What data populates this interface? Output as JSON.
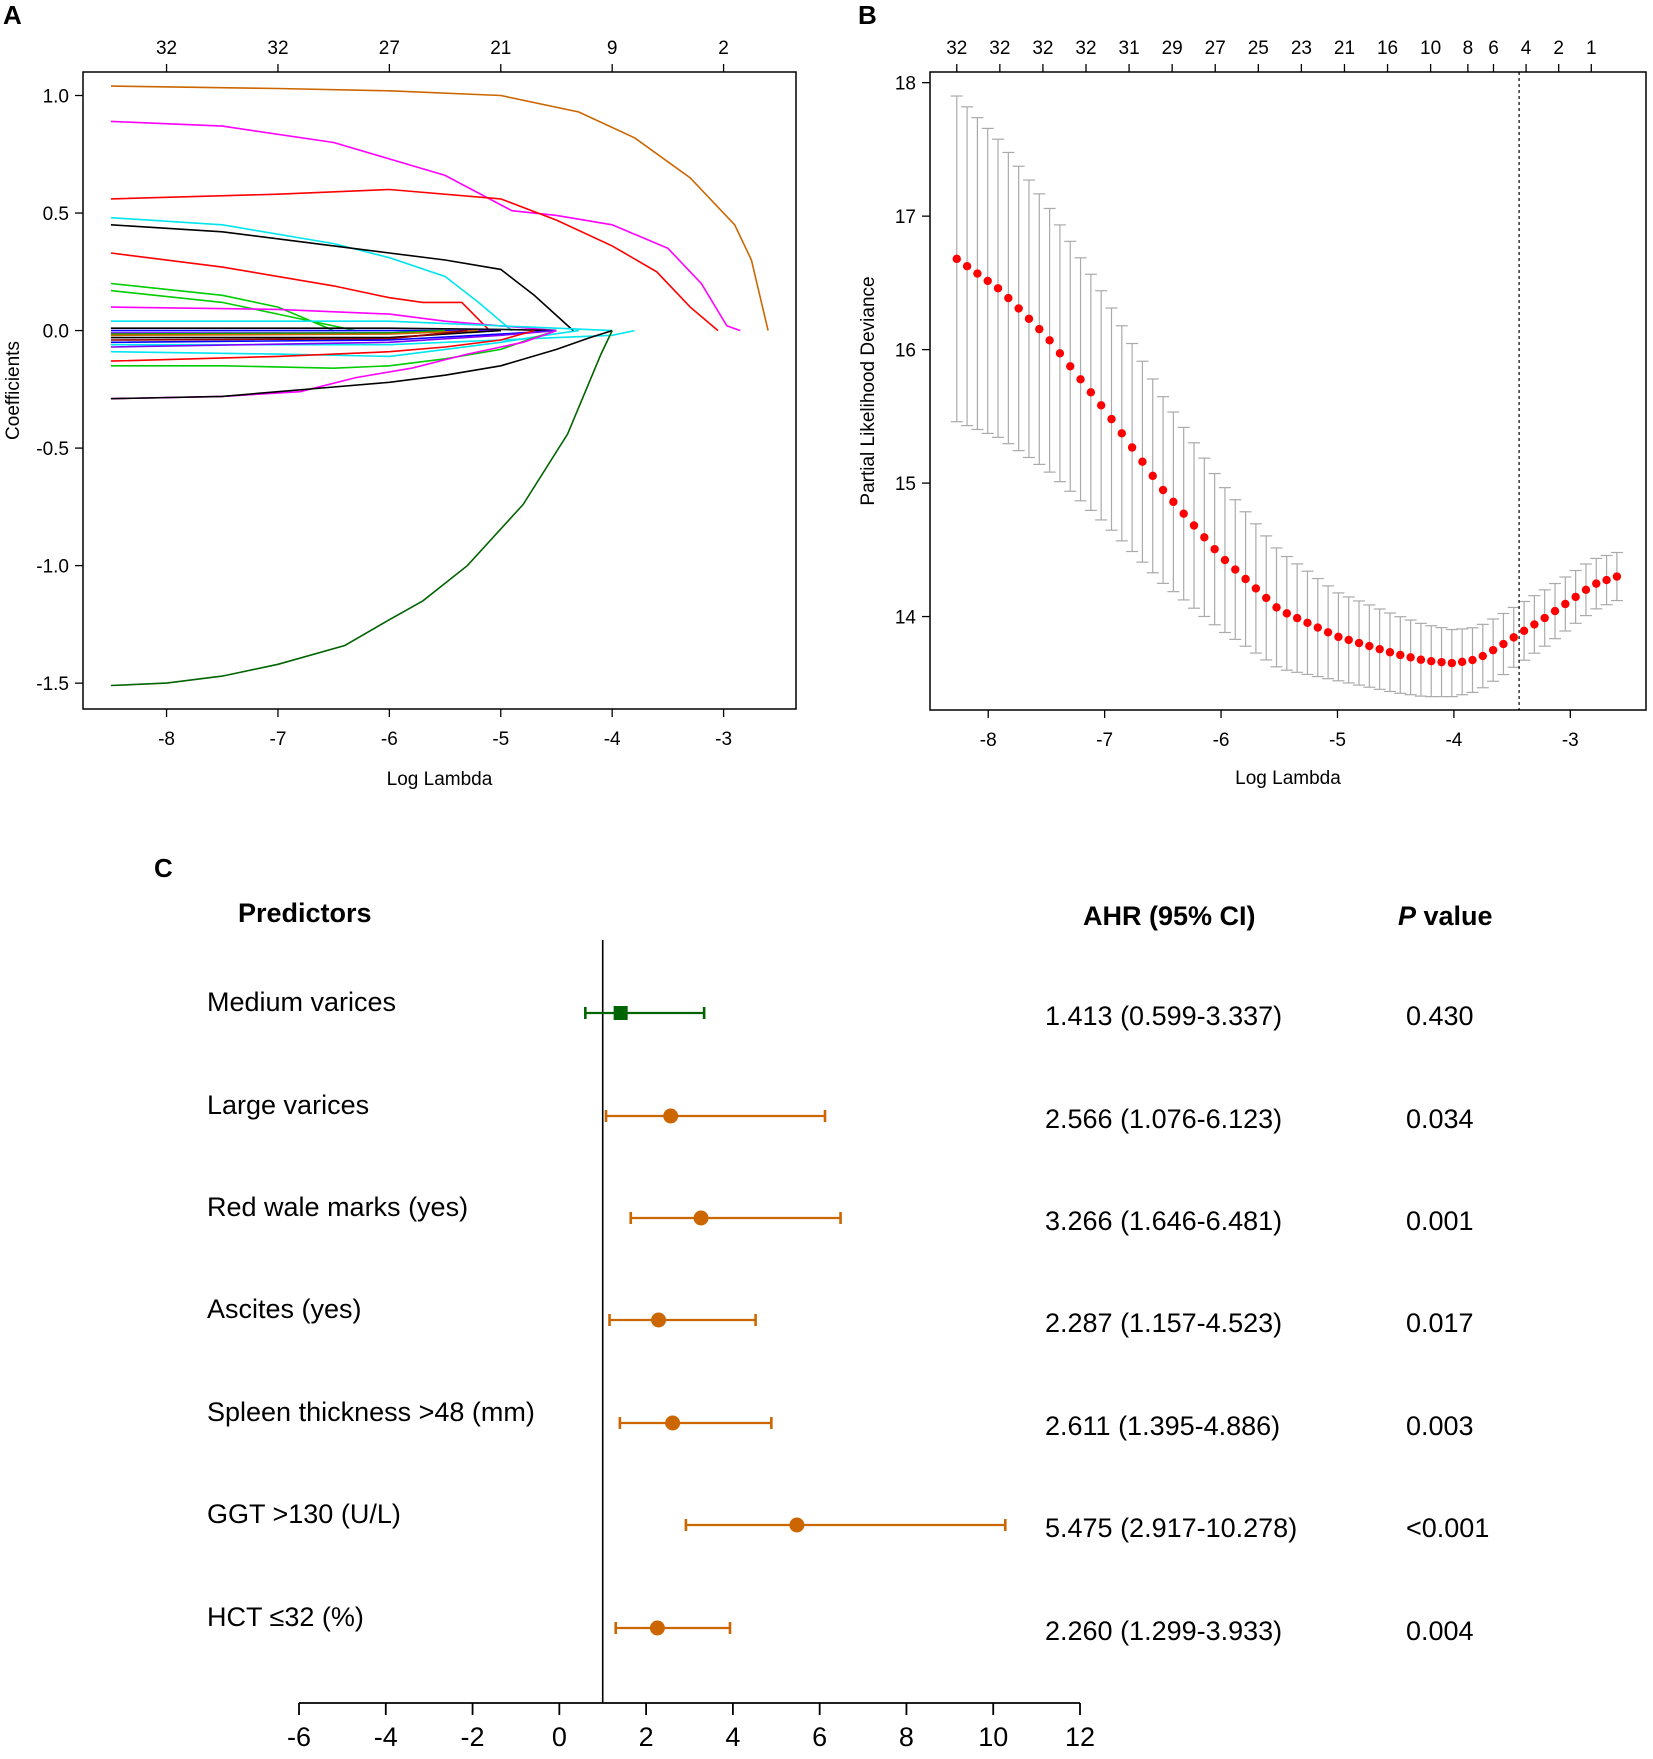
{
  "panels": {
    "a": "A",
    "b": "B",
    "c": "C"
  },
  "chart_data": [
    {
      "type": "line",
      "panel": "A",
      "title": "",
      "xlabel": "Log Lambda",
      "ylabel": "Coefficients",
      "xlim": [
        -8.75,
        -2.35
      ],
      "ylim": [
        -1.61,
        1.1
      ],
      "xticks": [
        "-8",
        "-7",
        "-6",
        "-5",
        "-4",
        "-3"
      ],
      "yticks": [
        "1.0",
        "0.5",
        "0.0",
        "-0.5",
        "-1.0",
        "-1.5"
      ],
      "top_axis_labels": [
        "32",
        "32",
        "27",
        "21",
        "9",
        "2"
      ],
      "top_axis_positions": [
        -8,
        -7,
        -6,
        -5,
        -4,
        -3
      ],
      "series": [
        {
          "name": "brown",
          "color": "#cc6600",
          "points": [
            [
              -8.5,
              1.04
            ],
            [
              -7,
              1.03
            ],
            [
              -6,
              1.02
            ],
            [
              -5,
              1.0
            ],
            [
              -4.3,
              0.93
            ],
            [
              -3.8,
              0.82
            ],
            [
              -3.3,
              0.65
            ],
            [
              -2.9,
              0.45
            ],
            [
              -2.75,
              0.3
            ],
            [
              -2.6,
              0
            ]
          ]
        },
        {
          "name": "magenta",
          "color": "#ff00ff",
          "points": [
            [
              -8.5,
              0.89
            ],
            [
              -7.5,
              0.87
            ],
            [
              -6.5,
              0.8
            ],
            [
              -5.5,
              0.66
            ],
            [
              -4.9,
              0.51
            ],
            [
              -4.5,
              0.49
            ],
            [
              -4,
              0.45
            ],
            [
              -3.5,
              0.35
            ],
            [
              -3.2,
              0.2
            ],
            [
              -2.97,
              0.02
            ],
            [
              -2.85,
              0
            ]
          ]
        },
        {
          "name": "red1",
          "color": "#ff0000",
          "points": [
            [
              -8.5,
              0.56
            ],
            [
              -7,
              0.58
            ],
            [
              -6,
              0.6
            ],
            [
              -5,
              0.56
            ],
            [
              -4.5,
              0.47
            ],
            [
              -4,
              0.36
            ],
            [
              -3.6,
              0.25
            ],
            [
              -3.3,
              0.1
            ],
            [
              -3.05,
              0
            ]
          ]
        },
        {
          "name": "cyan1",
          "color": "#00e5ee",
          "points": [
            [
              -8.5,
              0.48
            ],
            [
              -7.5,
              0.45
            ],
            [
              -6.5,
              0.37
            ],
            [
              -6,
              0.31
            ],
            [
              -5.5,
              0.23
            ],
            [
              -5.2,
              0.12
            ],
            [
              -4.9,
              0
            ]
          ]
        },
        {
          "name": "black1",
          "color": "#000000",
          "points": [
            [
              -8.5,
              0.45
            ],
            [
              -7.5,
              0.42
            ],
            [
              -6.5,
              0.36
            ],
            [
              -6,
              0.33
            ],
            [
              -5.5,
              0.3
            ],
            [
              -5,
              0.26
            ],
            [
              -4.7,
              0.15
            ],
            [
              -4.35,
              0
            ]
          ]
        },
        {
          "name": "red2",
          "color": "#ff0000",
          "points": [
            [
              -8.5,
              0.33
            ],
            [
              -7.5,
              0.27
            ],
            [
              -6.5,
              0.19
            ],
            [
              -6,
              0.14
            ],
            [
              -5.7,
              0.12
            ],
            [
              -5.35,
              0.12
            ],
            [
              -5.1,
              0
            ]
          ]
        },
        {
          "name": "green1",
          "color": "#00cc00",
          "points": [
            [
              -8.5,
              0.2
            ],
            [
              -7.5,
              0.15
            ],
            [
              -7,
              0.1
            ],
            [
              -6.6,
              0.02
            ],
            [
              -6.5,
              0
            ]
          ]
        },
        {
          "name": "green2",
          "color": "#00cc00",
          "points": [
            [
              -8.5,
              0.17
            ],
            [
              -7.5,
              0.12
            ],
            [
              -6.9,
              0.06
            ],
            [
              -6.3,
              0
            ]
          ]
        },
        {
          "name": "magenta2",
          "color": "#ff00ff",
          "points": [
            [
              -8.5,
              0.1
            ],
            [
              -7,
              0.09
            ],
            [
              -6,
              0.07
            ],
            [
              -5.5,
              0.04
            ],
            [
              -5,
              0.02
            ],
            [
              -4.5,
              0
            ]
          ]
        },
        {
          "name": "cyan2",
          "color": "#00e5ee",
          "points": [
            [
              -8.5,
              0.04
            ],
            [
              -6,
              0.04
            ],
            [
              -4.5,
              0.01
            ],
            [
              -4,
              0
            ]
          ]
        },
        {
          "name": "black2",
          "color": "#000000",
          "points": [
            [
              -8.5,
              0.01
            ],
            [
              -6,
              0.01
            ],
            [
              -5,
              0.005
            ],
            [
              -4.5,
              0
            ]
          ]
        },
        {
          "name": "blue1",
          "color": "#0000ff",
          "points": [
            [
              -8.5,
              0.0
            ],
            [
              -6,
              0.0
            ],
            [
              -5,
              0
            ]
          ]
        },
        {
          "name": "purple1",
          "color": "#8000ff",
          "points": [
            [
              -8.5,
              -0.01
            ],
            [
              -6,
              -0.01
            ],
            [
              -5,
              0
            ]
          ]
        },
        {
          "name": "green3",
          "color": "#00aa00",
          "points": [
            [
              -8.5,
              -0.015
            ],
            [
              -6,
              -0.01
            ],
            [
              -5.5,
              0
            ]
          ]
        },
        {
          "name": "brown2",
          "color": "#cc6600",
          "points": [
            [
              -8.5,
              -0.02
            ],
            [
              -6,
              -0.015
            ],
            [
              -5.2,
              0
            ]
          ]
        },
        {
          "name": "black3",
          "color": "#000000",
          "points": [
            [
              -8.5,
              -0.03
            ],
            [
              -6,
              -0.03
            ],
            [
              -5,
              0
            ]
          ]
        },
        {
          "name": "darkred1",
          "color": "#990000",
          "points": [
            [
              -8.5,
              -0.04
            ],
            [
              -6,
              -0.035
            ],
            [
              -5.3,
              0
            ]
          ]
        },
        {
          "name": "blue2",
          "color": "#0000ff",
          "points": [
            [
              -8.5,
              -0.05
            ],
            [
              -6,
              -0.04
            ],
            [
              -5,
              -0.015
            ],
            [
              -4.5,
              0
            ]
          ]
        },
        {
          "name": "cyan3",
          "color": "#00e5ee",
          "points": [
            [
              -8.5,
              -0.06
            ],
            [
              -6,
              -0.06
            ],
            [
              -4.5,
              -0.03
            ],
            [
              -4,
              -0.02
            ],
            [
              -3.8,
              0
            ]
          ]
        },
        {
          "name": "purple2",
          "color": "#8000ff",
          "points": [
            [
              -8.5,
              -0.07
            ],
            [
              -6,
              -0.05
            ],
            [
              -5,
              -0.02
            ],
            [
              -4.5,
              0
            ]
          ]
        },
        {
          "name": "cyan4",
          "color": "#00e5ee",
          "points": [
            [
              -8.5,
              -0.09
            ],
            [
              -7,
              -0.1
            ],
            [
              -6,
              -0.11
            ],
            [
              -5.5,
              -0.08
            ],
            [
              -5,
              -0.05
            ],
            [
              -4.6,
              -0.02
            ],
            [
              -4.3,
              0
            ]
          ]
        },
        {
          "name": "red3",
          "color": "#ff0000",
          "points": [
            [
              -8.5,
              -0.13
            ],
            [
              -7,
              -0.11
            ],
            [
              -6,
              -0.09
            ],
            [
              -5.5,
              -0.07
            ],
            [
              -5,
              -0.04
            ],
            [
              -4.7,
              0
            ]
          ]
        },
        {
          "name": "green4",
          "color": "#00cc00",
          "points": [
            [
              -8.5,
              -0.15
            ],
            [
              -7.5,
              -0.15
            ],
            [
              -6.5,
              -0.16
            ],
            [
              -6,
              -0.15
            ],
            [
              -5.5,
              -0.12
            ],
            [
              -5,
              -0.08
            ],
            [
              -4.7,
              -0.03
            ],
            [
              -4.5,
              0
            ]
          ]
        },
        {
          "name": "magenta3",
          "color": "#ff00ff",
          "points": [
            [
              -8.5,
              -0.29
            ],
            [
              -7.5,
              -0.28
            ],
            [
              -6.8,
              -0.26
            ],
            [
              -6.3,
              -0.2
            ],
            [
              -5.8,
              -0.16
            ],
            [
              -5.3,
              -0.1
            ],
            [
              -4.8,
              -0.05
            ],
            [
              -4.5,
              0
            ]
          ]
        },
        {
          "name": "black4",
          "color": "#000000",
          "points": [
            [
              -8.5,
              -0.29
            ],
            [
              -7.5,
              -0.28
            ],
            [
              -7,
              -0.26
            ],
            [
              -6.5,
              -0.24
            ],
            [
              -6,
              -0.22
            ],
            [
              -5.5,
              -0.19
            ],
            [
              -5,
              -0.15
            ],
            [
              -4.5,
              -0.08
            ],
            [
              -4.2,
              -0.03
            ],
            [
              -4,
              0
            ]
          ]
        },
        {
          "name": "darkgreen",
          "color": "#006400",
          "points": [
            [
              -8.5,
              -1.51
            ],
            [
              -8,
              -1.5
            ],
            [
              -7.5,
              -1.47
            ],
            [
              -7,
              -1.42
            ],
            [
              -6.4,
              -1.34
            ],
            [
              -6,
              -1.23
            ],
            [
              -5.7,
              -1.15
            ],
            [
              -5.3,
              -1.0
            ],
            [
              -4.8,
              -0.74
            ],
            [
              -4.4,
              -0.44
            ],
            [
              -4.1,
              -0.1
            ],
            [
              -4,
              0
            ]
          ]
        }
      ]
    },
    {
      "type": "scatter",
      "panel": "B",
      "title": "",
      "xlabel": "Log Lambda",
      "ylabel": "Partial Likelihood Deviance",
      "xlim": [
        -8.5,
        -2.35
      ],
      "ylim": [
        13.3,
        18.08
      ],
      "xticks": [
        "-8",
        "-7",
        "-6",
        "-5",
        "-4",
        "-3"
      ],
      "yticks": [
        "18",
        "17",
        "16",
        "15",
        "14"
      ],
      "top_axis_labels": [
        "32",
        "32",
        "32",
        "32",
        "31",
        "29",
        "27",
        "25",
        "23",
        "21",
        "16",
        "10",
        "8",
        "6",
        "4",
        "2",
        "1"
      ],
      "top_axis_positions": [
        -8.27,
        -7.9,
        -7.53,
        -7.16,
        -6.79,
        -6.42,
        -6.05,
        -5.68,
        -5.31,
        -4.94,
        -4.57,
        -4.2,
        -3.88,
        -3.66,
        -3.38,
        -3.1,
        -2.82
      ],
      "vline_x": -3.44,
      "point_color": "#ff0000",
      "errorbar_color": "#aaaaaa",
      "x_start": -8.27,
      "x_end": -2.6,
      "n_points": 65,
      "curve_knots": [
        [
          -8.27,
          16.68
        ],
        [
          -7.9,
          16.45
        ],
        [
          -7.5,
          16.1
        ],
        [
          -7,
          15.55
        ],
        [
          -6.5,
          14.95
        ],
        [
          -6,
          14.45
        ],
        [
          -5.5,
          14.05
        ],
        [
          -5,
          13.85
        ],
        [
          -4.5,
          13.72
        ],
        [
          -4.25,
          13.67
        ],
        [
          -4,
          13.65
        ],
        [
          -3.8,
          13.68
        ],
        [
          -3.6,
          13.78
        ],
        [
          -3.44,
          13.87
        ],
        [
          -3.2,
          14.0
        ],
        [
          -3,
          14.12
        ],
        [
          -2.8,
          14.24
        ],
        [
          -2.6,
          14.3
        ]
      ],
      "se_knots": [
        [
          -8.27,
          1.22
        ],
        [
          -7,
          0.85
        ],
        [
          -6,
          0.55
        ],
        [
          -5,
          0.33
        ],
        [
          -4,
          0.25
        ],
        [
          -3,
          0.2
        ],
        [
          -2.6,
          0.18
        ]
      ]
    },
    {
      "type": "forest",
      "panel": "C",
      "title": "",
      "headers": {
        "predictors": "Predictors",
        "ahr": "AHR (95% CI)",
        "p_italic": "P",
        "p_rest": " value"
      },
      "xlim": [
        -6,
        12
      ],
      "xticks": [
        "-6",
        "-4",
        "-2",
        "0",
        "2",
        "4",
        "6",
        "8",
        "10",
        "12"
      ],
      "reference_line": 1,
      "rows": [
        {
          "label": "Medium varices",
          "ahr": 1.413,
          "lower": 0.599,
          "upper": 3.337,
          "ci_text": "1.413 (0.599-3.337)",
          "p": "0.430",
          "marker": "square",
          "color": "#006400"
        },
        {
          "label": "Large varices",
          "ahr": 2.566,
          "lower": 1.076,
          "upper": 6.123,
          "ci_text": "2.566 (1.076-6.123)",
          "p": "0.034",
          "marker": "circle",
          "color": "#cc6600"
        },
        {
          "label": "Red wale marks (yes)",
          "ahr": 3.266,
          "lower": 1.646,
          "upper": 6.481,
          "ci_text": "3.266 (1.646-6.481)",
          "p": "0.001",
          "marker": "circle",
          "color": "#cc6600"
        },
        {
          "label": "Ascites (yes)",
          "ahr": 2.287,
          "lower": 1.157,
          "upper": 4.523,
          "ci_text": "2.287 (1.157-4.523)",
          "p": "0.017",
          "marker": "circle",
          "color": "#cc6600"
        },
        {
          "label": "Spleen thickness >48 (mm)",
          "ahr": 2.611,
          "lower": 1.395,
          "upper": 4.886,
          "ci_text": "2.611 (1.395-4.886)",
          "p": "0.003",
          "marker": "circle",
          "color": "#cc6600"
        },
        {
          "label": "GGT >130 (U/L)",
          "ahr": 5.475,
          "lower": 2.917,
          "upper": 10.278,
          "ci_text": "5.475 (2.917-10.278)",
          "p": "<0.001",
          "marker": "circle",
          "color": "#cc6600"
        },
        {
          "label": "HCT ≤32 (%)",
          "ahr": 2.26,
          "lower": 1.299,
          "upper": 3.933,
          "ci_text": "2.260 (1.299-3.933)",
          "p": "0.004",
          "marker": "circle",
          "color": "#cc6600"
        }
      ]
    }
  ]
}
